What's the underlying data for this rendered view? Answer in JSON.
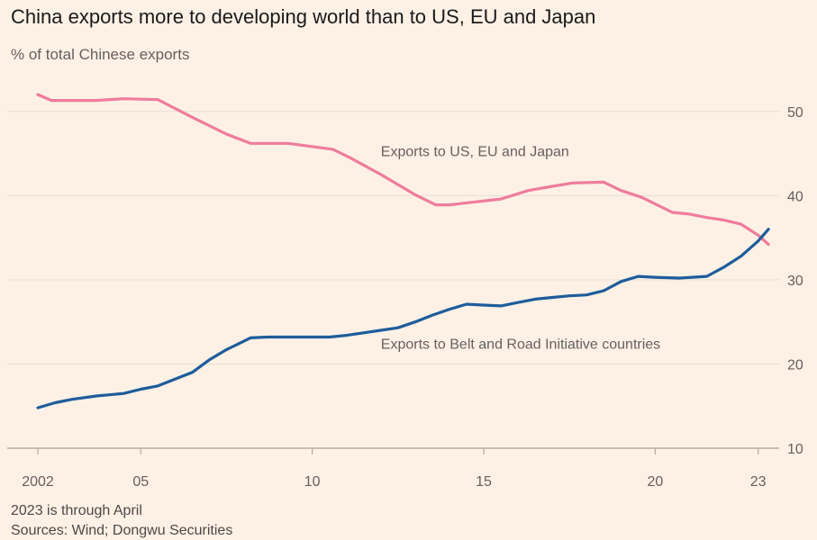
{
  "header": {
    "title": "China exports more to developing world than to US, EU and Japan",
    "subtitle": "% of total Chinese exports"
  },
  "footer": {
    "note": "2023 is through April",
    "source": "Sources: Wind; Dongwu Securities"
  },
  "colors": {
    "background": "#fdf1e6",
    "gridline": "#e9ded3",
    "baseline": "#b8aca0",
    "us_eu_japan": "#ef7c9b",
    "belt_road": "#1e5c9b"
  },
  "chart_data": {
    "type": "line",
    "title": "China exports more to developing world than to US, EU and Japan",
    "ylabel": "% of total Chinese exports",
    "xlabel": "",
    "xlim": [
      2002,
      2023.35
    ],
    "ylim": [
      10,
      53
    ],
    "y_ticks": [
      10,
      20,
      30,
      40,
      50
    ],
    "y_tick_labels": [
      "10",
      "20",
      "30",
      "40",
      "50"
    ],
    "x_ticks": [
      2002,
      2005,
      2010,
      2015,
      2020,
      2023
    ],
    "x_tick_labels": [
      "2002",
      "05",
      "10",
      "15",
      "20",
      "23"
    ],
    "grid": true,
    "series": [
      {
        "name": "Exports to US, EU and Japan",
        "label_anchor": [
          2012,
          44.7
        ],
        "x": [
          2002,
          2002.4,
          2003,
          2003.7,
          2004.5,
          2005.5,
          2006.5,
          2007.5,
          2008.2,
          2009.3,
          2010.6,
          2011.1,
          2012,
          2013,
          2013.6,
          2014,
          2015.5,
          2016.3,
          2017,
          2017.6,
          2018.5,
          2019,
          2019.6,
          2020.5,
          2021,
          2021.5,
          2022,
          2022.5,
          2023,
          2023.3
        ],
        "values": [
          52.0,
          51.3,
          51.3,
          51.3,
          51.5,
          51.4,
          49.3,
          47.3,
          46.2,
          46.2,
          45.5,
          44.5,
          42.5,
          40.1,
          38.9,
          38.9,
          39.6,
          40.6,
          41.1,
          41.5,
          41.6,
          40.6,
          39.8,
          38.0,
          37.8,
          37.4,
          37.1,
          36.6,
          35.3,
          34.2
        ]
      },
      {
        "name": "Exports to Belt and Road Initiative countries",
        "label_anchor": [
          2012,
          21.8
        ],
        "x": [
          2002,
          2002.5,
          2003,
          2003.7,
          2004.5,
          2005,
          2005.5,
          2006,
          2006.5,
          2007,
          2007.5,
          2008,
          2008.2,
          2008.7,
          2009,
          2009.5,
          2010,
          2010.5,
          2011,
          2011.5,
          2012,
          2012.5,
          2013,
          2013.5,
          2014,
          2014.5,
          2015,
          2015.5,
          2016,
          2016.5,
          2017,
          2017.5,
          2018,
          2018.5,
          2019,
          2019.5,
          2020,
          2020.7,
          2021.5,
          2022,
          2022.5,
          2023,
          2023.3
        ],
        "values": [
          14.8,
          15.4,
          15.8,
          16.2,
          16.5,
          17.0,
          17.4,
          18.2,
          19.0,
          20.5,
          21.7,
          22.7,
          23.1,
          23.2,
          23.2,
          23.2,
          23.2,
          23.2,
          23.4,
          23.7,
          24.0,
          24.3,
          25.0,
          25.8,
          26.5,
          27.1,
          27.0,
          26.9,
          27.3,
          27.7,
          27.9,
          28.1,
          28.2,
          28.7,
          29.8,
          30.4,
          30.3,
          30.2,
          30.4,
          31.5,
          32.8,
          34.6,
          36.0
        ]
      }
    ]
  }
}
